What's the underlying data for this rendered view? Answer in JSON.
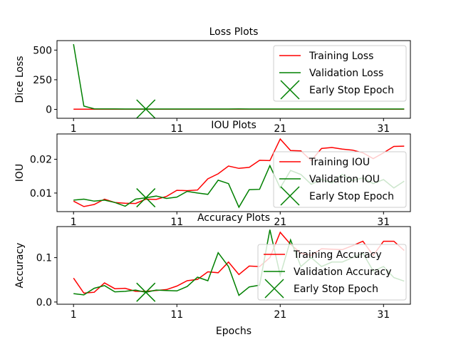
{
  "colors": {
    "training": "#ff0000",
    "validation": "#008000",
    "early_stop": "#008000"
  },
  "chart_data": [
    {
      "type": "line",
      "title": "Loss Plots",
      "xlabel": "",
      "ylabel": "Dice Loss",
      "xlim": [
        -0.6,
        33.6
      ],
      "ylim": [
        -75,
        580
      ],
      "xticks": [
        1,
        11,
        21,
        31
      ],
      "yticks": [
        0,
        250,
        500
      ],
      "legend": "top-right",
      "legend_entries": [
        "Training Loss",
        "Validation Loss",
        "Early Stop Epoch"
      ],
      "series": [
        {
          "name": "Training Loss",
          "color": "#ff0000",
          "x": [
            1,
            2,
            3,
            4,
            5,
            6,
            7,
            8,
            9,
            10,
            11,
            12,
            13,
            14,
            15,
            16,
            17,
            18,
            19,
            20,
            21,
            22,
            23,
            24,
            25,
            26,
            27,
            28,
            29,
            30,
            31,
            32,
            33
          ],
          "y": [
            2,
            2,
            2,
            2,
            2,
            2,
            2,
            2,
            2,
            2,
            2,
            2,
            2,
            2,
            2,
            2,
            2,
            2,
            2,
            2,
            2,
            2,
            2,
            2,
            2,
            2,
            2,
            2,
            2,
            2,
            2,
            2,
            2
          ]
        },
        {
          "name": "Validation Loss",
          "color": "#008000",
          "x": [
            1,
            2,
            3,
            4,
            5,
            6,
            7,
            8,
            9,
            10,
            11,
            12,
            13,
            14,
            15,
            16,
            17,
            18,
            19,
            20,
            21,
            22,
            23,
            24,
            25,
            26,
            27,
            28,
            29,
            30,
            31,
            32,
            33
          ],
          "y": [
            550,
            28,
            5,
            4,
            4,
            3,
            3,
            3,
            3,
            3,
            3,
            3,
            3,
            3,
            3,
            3,
            4,
            3,
            3,
            3,
            3,
            3,
            3,
            3,
            3,
            3,
            3,
            3,
            3,
            3,
            3,
            3,
            3
          ]
        }
      ],
      "early_stop": {
        "x": 8,
        "y": 3
      }
    },
    {
      "type": "line",
      "title": "IOU Plots",
      "xlabel": "",
      "ylabel": "IOU",
      "xlim": [
        -0.6,
        33.6
      ],
      "ylim": [
        0.0045,
        0.0275
      ],
      "xticks": [
        1,
        11,
        21,
        31
      ],
      "yticks": [
        0.01,
        0.02
      ],
      "ytick_labels": [
        "0.01",
        "0.02"
      ],
      "legend": "lower-right",
      "legend_entries": [
        "Training IOU",
        "Validation IOU",
        "Early Stop Epoch"
      ],
      "series": [
        {
          "name": "Training IOU",
          "color": "#ff0000",
          "x": [
            1,
            2,
            3,
            4,
            5,
            6,
            7,
            8,
            9,
            10,
            11,
            12,
            13,
            14,
            15,
            16,
            17,
            18,
            19,
            20,
            21,
            22,
            23,
            24,
            25,
            26,
            27,
            28,
            29,
            30,
            31,
            32,
            33
          ],
          "y": [
            0.0076,
            0.006,
            0.0066,
            0.0082,
            0.0072,
            0.007,
            0.0069,
            0.0082,
            0.0081,
            0.009,
            0.0108,
            0.0107,
            0.0109,
            0.0142,
            0.0157,
            0.018,
            0.0173,
            0.0176,
            0.0197,
            0.0196,
            0.026,
            0.0226,
            0.0225,
            0.0196,
            0.0232,
            0.0235,
            0.023,
            0.0227,
            0.0219,
            0.0202,
            0.0219,
            0.0238,
            0.0239
          ]
        },
        {
          "name": "Validation IOU",
          "color": "#008000",
          "x": [
            1,
            2,
            3,
            4,
            5,
            6,
            7,
            8,
            9,
            10,
            11,
            12,
            13,
            14,
            15,
            16,
            17,
            18,
            19,
            20,
            21,
            22,
            23,
            24,
            25,
            26,
            27,
            28,
            29,
            30,
            31,
            32,
            33
          ],
          "y": [
            0.0079,
            0.0082,
            0.0076,
            0.0079,
            0.0072,
            0.0061,
            0.0082,
            0.0086,
            0.0091,
            0.0084,
            0.0088,
            0.0105,
            0.01,
            0.0096,
            0.0138,
            0.0128,
            0.0058,
            0.011,
            0.0111,
            0.0181,
            0.0115,
            0.0167,
            0.0155,
            0.0126,
            0.014,
            0.013,
            0.0155,
            0.0137,
            0.0145,
            0.0128,
            0.014,
            0.0115,
            0.0135
          ]
        }
      ],
      "early_stop": {
        "x": 8,
        "y": 0.0086
      }
    },
    {
      "type": "line",
      "title": "Accuracy Plots",
      "xlabel": "Epochs",
      "ylabel": "Accuracy",
      "xlim": [
        -0.6,
        33.6
      ],
      "ylim": [
        -0.005,
        0.17
      ],
      "xticks": [
        1,
        11,
        21,
        31
      ],
      "yticks": [
        0.0,
        0.1
      ],
      "ytick_labels": [
        "0.0",
        "0.1"
      ],
      "legend": "lower-right",
      "legend_entries": [
        "Training Accuracy",
        "Validation Accuracy",
        "Early Stop Epoch"
      ],
      "series": [
        {
          "name": "Training Accuracy",
          "color": "#ff0000",
          "x": [
            1,
            2,
            3,
            4,
            5,
            6,
            7,
            8,
            9,
            10,
            11,
            12,
            13,
            14,
            15,
            16,
            17,
            18,
            19,
            20,
            21,
            22,
            23,
            24,
            25,
            26,
            27,
            28,
            29,
            30,
            31,
            32,
            33
          ],
          "y": [
            0.054,
            0.02,
            0.022,
            0.043,
            0.03,
            0.031,
            0.024,
            0.024,
            0.026,
            0.028,
            0.036,
            0.048,
            0.051,
            0.068,
            0.066,
            0.09,
            0.062,
            0.081,
            0.08,
            0.1,
            0.157,
            0.13,
            0.11,
            0.105,
            0.12,
            0.119,
            0.118,
            0.127,
            0.137,
            0.105,
            0.137,
            0.137,
            0.116
          ]
        },
        {
          "name": "Validation Accuracy",
          "color": "#008000",
          "x": [
            1,
            2,
            3,
            4,
            5,
            6,
            7,
            8,
            9,
            10,
            11,
            12,
            13,
            14,
            15,
            16,
            17,
            18,
            19,
            20,
            21,
            22,
            23,
            24,
            25,
            26,
            27,
            28,
            29,
            30,
            31,
            32,
            33
          ],
          "y": [
            0.019,
            0.016,
            0.031,
            0.037,
            0.023,
            0.024,
            0.027,
            0.022,
            0.027,
            0.026,
            0.025,
            0.035,
            0.056,
            0.048,
            0.111,
            0.08,
            0.015,
            0.034,
            0.038,
            0.163,
            0.06,
            0.14,
            0.08,
            0.1,
            0.08,
            0.09,
            0.09,
            0.1,
            0.11,
            0.07,
            0.08,
            0.055,
            0.047
          ]
        }
      ],
      "early_stop": {
        "x": 8,
        "y": 0.022
      }
    }
  ]
}
